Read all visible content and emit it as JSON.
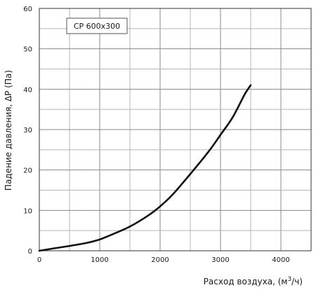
{
  "chart_data": {
    "type": "line",
    "legend": "CP  600x300",
    "legend_placement": "top-left",
    "xlabel": "Расход воздуха, (м3/ч)",
    "xlabel_parts": {
      "main": "Расход воздуха, (м",
      "sup": "3",
      "end": "/ч)"
    },
    "ylabel": "Падение давления, ΔP (Па)",
    "xlim": [
      0,
      4500
    ],
    "ylim": [
      0,
      60
    ],
    "x_ticks": [
      0,
      1000,
      2000,
      3000,
      4000
    ],
    "y_ticks": [
      0,
      10,
      20,
      30,
      40,
      50,
      60
    ],
    "x_minor_step": 500,
    "y_minor_step": 5,
    "grid": true,
    "series": [
      {
        "x": [
          0,
          200,
          500,
          800,
          1000,
          1200,
          1500,
          1800,
          2000,
          2200,
          2500,
          2800,
          3000,
          3200,
          3400,
          3500
        ],
        "y": [
          0,
          0.5,
          1.2,
          2.0,
          2.8,
          4.0,
          6.0,
          8.7,
          11.0,
          13.8,
          19.0,
          24.5,
          28.7,
          33.0,
          38.7,
          41.0
        ]
      }
    ]
  }
}
